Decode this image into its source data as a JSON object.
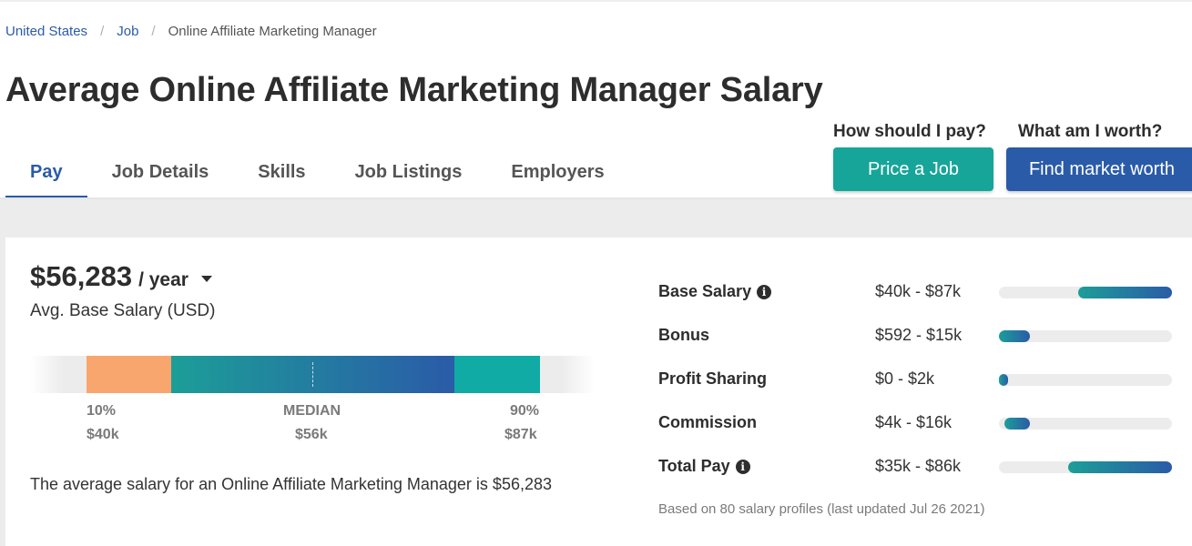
{
  "breadcrumb": {
    "items": [
      "United States",
      "Job",
      "Online Affiliate Marketing Manager"
    ],
    "separator": "/"
  },
  "page_title": "Average Online Affiliate Marketing Manager Salary",
  "tabs": [
    {
      "label": "Pay",
      "active": true
    },
    {
      "label": "Job Details",
      "active": false
    },
    {
      "label": "Skills",
      "active": false
    },
    {
      "label": "Job Listings",
      "active": false
    },
    {
      "label": "Employers",
      "active": false
    }
  ],
  "cta": {
    "price_question": "How should I pay?",
    "price_button": "Price a Job",
    "worth_question": "What am I worth?",
    "worth_button": "Find market worth"
  },
  "salary": {
    "amount": "$56,283",
    "period": "/ year",
    "caption": "Avg. Base Salary (USD)",
    "sentence": "The average salary for an Online Affiliate Marketing Manager is $56,283"
  },
  "range": {
    "low_pct": "10%",
    "low_value": "$40k",
    "median_label": "MEDIAN",
    "median_value": "$56k",
    "high_pct": "90%",
    "high_value": "$87k"
  },
  "breakdown": [
    {
      "label": "Base Salary",
      "range": "$40k - $87k",
      "info": true,
      "bar_start": 0.46,
      "bar_end": 1.0
    },
    {
      "label": "Bonus",
      "range": "$592 - $15k",
      "info": false,
      "bar_start": 0.0,
      "bar_end": 0.18
    },
    {
      "label": "Profit Sharing",
      "range": "$0 - $2k",
      "info": false,
      "bar_start": 0.0,
      "bar_end": 0.05
    },
    {
      "label": "Commission",
      "range": "$4k - $16k",
      "info": false,
      "bar_start": 0.03,
      "bar_end": 0.18
    },
    {
      "label": "Total Pay",
      "range": "$35k - $86k",
      "info": true,
      "bar_start": 0.4,
      "bar_end": 1.0
    }
  ],
  "footnote": "Based on 80 salary profiles (last updated Jul 26 2021)",
  "colors": {
    "link_blue": "#2a5ba8",
    "teal": "#17a599",
    "orange": "#f9a66e"
  }
}
